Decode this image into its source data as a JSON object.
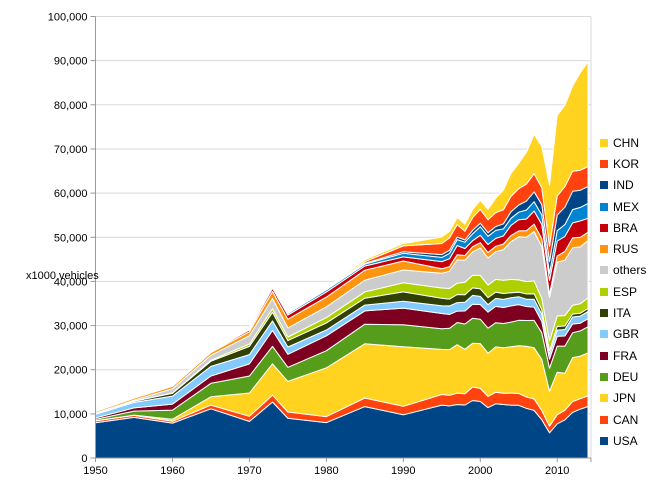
{
  "axis": {
    "y_title": "x1000 vehicles",
    "y_tick_labels": [
      "0",
      "10,000",
      "20,000",
      "30,000",
      "40,000",
      "50,000",
      "60,000",
      "70,000",
      "80,000",
      "90,000",
      "100,000"
    ],
    "x_tick_labels": [
      "1950",
      "1960",
      "1970",
      "1980",
      "1990",
      "2000",
      "2010"
    ]
  },
  "colors": {
    "grid": "#d9d9d9",
    "axis_line": "#9a9a9a",
    "border": "#d9d9d9",
    "tick_text": "#000000",
    "band_outline": "#ffffff",
    "background": "#ffffff"
  },
  "legend": {
    "position": "right",
    "items": [
      {
        "label": "CHN",
        "color": "#FFD320"
      },
      {
        "label": "KOR",
        "color": "#FF420E"
      },
      {
        "label": "IND",
        "color": "#004586"
      },
      {
        "label": "MEX",
        "color": "#0084D1"
      },
      {
        "label": "BRA",
        "color": "#C5000B"
      },
      {
        "label": "RUS",
        "color": "#FF950E"
      },
      {
        "label": "others",
        "color": "#CCCCCC"
      },
      {
        "label": "ESP",
        "color": "#AECF00"
      },
      {
        "label": "ITA",
        "color": "#314004"
      },
      {
        "label": "GBR",
        "color": "#83CAFF"
      },
      {
        "label": "FRA",
        "color": "#7E0021"
      },
      {
        "label": "DEU",
        "color": "#579D1C"
      },
      {
        "label": "JPN",
        "color": "#FFD320"
      },
      {
        "label": "CAN",
        "color": "#FF420E"
      },
      {
        "label": "USA",
        "color": "#004586"
      }
    ]
  },
  "chart_data": {
    "type": "area",
    "stacked": true,
    "title": "",
    "xlabel": "",
    "ylabel": "x1000 vehicles",
    "ylim": [
      0,
      100000
    ],
    "y_tick_step": 10000,
    "x_ticks": [
      1950,
      1960,
      1970,
      1980,
      1990,
      2000,
      2010
    ],
    "grid": "horizontal",
    "legend_position": "right",
    "units": "x1000 vehicles",
    "x": [
      1950,
      1955,
      1960,
      1965,
      1970,
      1973,
      1975,
      1980,
      1985,
      1990,
      1995,
      1996,
      1997,
      1998,
      1999,
      2000,
      2001,
      2002,
      2003,
      2004,
      2005,
      2006,
      2007,
      2008,
      2009,
      2010,
      2011,
      2012,
      2013,
      2014
    ],
    "series": [
      {
        "name": "USA",
        "color": "#004586",
        "values": [
          8006,
          9204,
          7905,
          11138,
          8284,
          12682,
          8987,
          8010,
          11653,
          9783,
          11985,
          11799,
          12119,
          12003,
          13025,
          12800,
          11425,
          12280,
          12115,
          11989,
          11947,
          11264,
          10781,
          8673,
          5709,
          7743,
          8662,
          10336,
          11066,
          11661
        ]
      },
      {
        "name": "CAN",
        "color": "#FF420E",
        "values": [
          388,
          452,
          398,
          847,
          1160,
          1575,
          1424,
          1374,
          1933,
          1928,
          2408,
          2397,
          2571,
          2568,
          3059,
          2962,
          2533,
          2629,
          2553,
          2712,
          2688,
          2572,
          2579,
          2082,
          1490,
          2068,
          2135,
          2463,
          2380,
          2394
        ]
      },
      {
        "name": "JPN",
        "color": "#FFD320",
        "values": [
          32,
          69,
          482,
          1876,
          5289,
          7083,
          6942,
          11043,
          12271,
          13487,
          10196,
          10346,
          10975,
          10050,
          9895,
          10141,
          9777,
          10257,
          10286,
          10512,
          10800,
          11484,
          11596,
          11576,
          7934,
          9629,
          8399,
          9943,
          9630,
          9775
        ]
      },
      {
        "name": "DEU",
        "color": "#579D1C",
        "values": [
          306,
          909,
          2055,
          3062,
          3842,
          3949,
          3186,
          3879,
          4446,
          4977,
          4667,
          4843,
          5023,
          5727,
          5688,
          5527,
          5692,
          5469,
          5507,
          5570,
          5758,
          5820,
          6213,
          6046,
          5210,
          5906,
          6147,
          5649,
          5718,
          5908
        ]
      },
      {
        "name": "FRA",
        "color": "#7E0021",
        "values": [
          357,
          725,
          1369,
          1642,
          2750,
          3596,
          2951,
          3378,
          3016,
          3769,
          3475,
          3148,
          2580,
          2954,
          3180,
          3348,
          3628,
          3702,
          3620,
          3666,
          3549,
          3169,
          3016,
          2569,
          2048,
          2229,
          2295,
          1968,
          1740,
          1817
        ]
      },
      {
        "name": "GBR",
        "color": "#83CAFF",
        "values": [
          784,
          1237,
          1811,
          2177,
          2098,
          2164,
          1648,
          1313,
          1314,
          1566,
          1765,
          1924,
          1936,
          1980,
          1974,
          1814,
          1685,
          1823,
          1846,
          1857,
          1803,
          1648,
          1750,
          1650,
          1090,
          1393,
          1464,
          1577,
          1598,
          1599
        ]
      },
      {
        "name": "ITA",
        "color": "#314004",
        "values": [
          128,
          269,
          645,
          1176,
          1854,
          1958,
          1459,
          1612,
          1573,
          2121,
          1667,
          1545,
          1828,
          1693,
          1701,
          1738,
          1580,
          1427,
          1322,
          1142,
          1038,
          1212,
          1284,
          1024,
          843,
          838,
          790,
          672,
          658,
          698
        ]
      },
      {
        "name": "ESP",
        "color": "#AECF00",
        "values": [
          0,
          15,
          58,
          230,
          536,
          822,
          814,
          1182,
          1418,
          2053,
          2334,
          2412,
          2562,
          2826,
          2852,
          3033,
          2850,
          2855,
          3030,
          3012,
          2753,
          2777,
          2890,
          2542,
          2170,
          2388,
          2354,
          1979,
          2163,
          2403
        ]
      },
      {
        "name": "others",
        "color": "#CCCCCC",
        "values": [
          176,
          244,
          983,
          1115,
          1889,
          2301,
          2063,
          2462,
          2673,
          2900,
          3343,
          3889,
          5275,
          4992,
          5316,
          6202,
          6130,
          6287,
          6920,
          8541,
          9757,
          10062,
          11202,
          11726,
          9853,
          12168,
          12557,
          13032,
          12860,
          13006
        ]
      },
      {
        "name": "RUS",
        "color": "#FF950E",
        "values": [
          363,
          445,
          524,
          616,
          916,
          1602,
          1964,
          2199,
          2232,
          2040,
          1027,
          1030,
          1186,
          1083,
          1170,
          1206,
          1251,
          1220,
          1279,
          1386,
          1355,
          1508,
          1660,
          1790,
          725,
          1403,
          1988,
          2233,
          2184,
          1887
        ]
      },
      {
        "name": "BRA",
        "color": "#C5000B",
        "values": [
          0,
          0,
          133,
          185,
          416,
          750,
          930,
          1165,
          967,
          914,
          1629,
          1804,
          2070,
          1586,
          1357,
          1682,
          1817,
          1792,
          1827,
          2317,
          2531,
          2611,
          2977,
          3216,
          3183,
          3382,
          3406,
          3403,
          3712,
          3146
        ]
      },
      {
        "name": "MEX",
        "color": "#0084D1",
        "values": [
          22,
          34,
          50,
          97,
          193,
          286,
          361,
          490,
          398,
          821,
          935,
          1211,
          1338,
          1427,
          1550,
          1936,
          1841,
          1805,
          1575,
          1577,
          1684,
          2046,
          2095,
          2168,
          1561,
          2342,
          2681,
          3002,
          3055,
          3365
        ]
      },
      {
        "name": "IND",
        "color": "#004586",
        "values": [
          15,
          25,
          52,
          70,
          76,
          90,
          95,
          113,
          200,
          364,
          636,
          696,
          595,
          516,
          818,
          801,
          815,
          895,
          1161,
          1511,
          1639,
          2020,
          2254,
          2332,
          2642,
          3557,
          3927,
          4145,
          3898,
          3840
        ]
      },
      {
        "name": "KOR",
        "color": "#FF420E",
        "values": [
          0,
          0,
          0,
          0,
          29,
          26,
          36,
          123,
          378,
          1322,
          2526,
          2813,
          2818,
          1954,
          2843,
          3115,
          2946,
          3148,
          3178,
          3469,
          3699,
          3840,
          4086,
          3827,
          3513,
          4272,
          4657,
          4562,
          4521,
          4525
        ]
      },
      {
        "name": "CHN",
        "color": "#FFD320",
        "values": [
          0,
          0,
          23,
          41,
          87,
          116,
          140,
          222,
          437,
          509,
          1453,
          1475,
          1580,
          1628,
          1830,
          2069,
          2334,
          3251,
          4444,
          5235,
          5718,
          7189,
          8883,
          9299,
          13791,
          18265,
          18419,
          19272,
          22117,
          23723
        ]
      }
    ]
  }
}
